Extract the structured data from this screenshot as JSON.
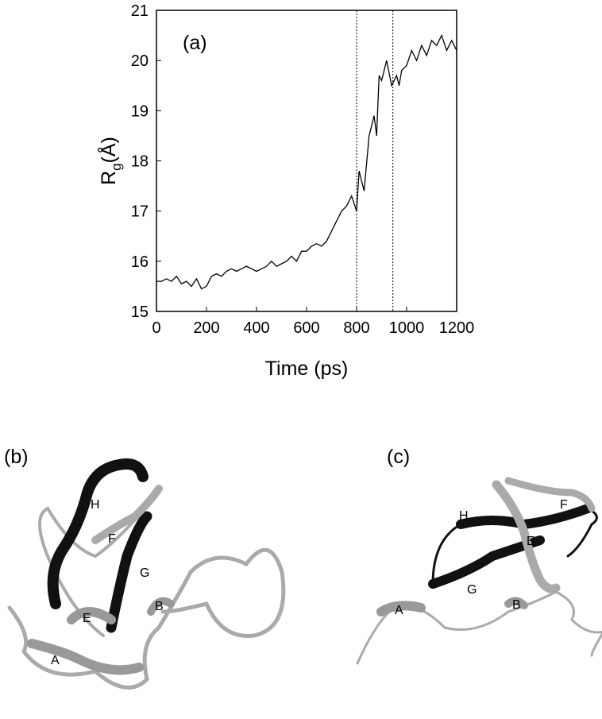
{
  "chart_data": {
    "type": "line",
    "annotation": "(a)",
    "xlabel": "Time (ps)",
    "ylabel": {
      "main": "R",
      "sub": "g",
      "unit": "(Å)"
    },
    "x": [
      0,
      20,
      40,
      60,
      80,
      100,
      120,
      140,
      160,
      180,
      200,
      220,
      240,
      260,
      280,
      300,
      320,
      340,
      360,
      380,
      400,
      420,
      440,
      460,
      480,
      500,
      520,
      540,
      560,
      580,
      600,
      620,
      640,
      660,
      680,
      700,
      720,
      740,
      760,
      780,
      800,
      810,
      830,
      850,
      870,
      880,
      890,
      900,
      920,
      940,
      960,
      970,
      980,
      1000,
      1020,
      1040,
      1060,
      1080,
      1100,
      1120,
      1140,
      1160,
      1180,
      1200
    ],
    "series": [
      {
        "color": "#000000",
        "values": [
          15.6,
          15.6,
          15.65,
          15.6,
          15.7,
          15.55,
          15.6,
          15.5,
          15.65,
          15.45,
          15.5,
          15.7,
          15.75,
          15.7,
          15.8,
          15.85,
          15.8,
          15.85,
          15.9,
          15.85,
          15.8,
          15.85,
          15.9,
          16.0,
          15.9,
          15.95,
          16.0,
          16.1,
          16.0,
          16.2,
          16.2,
          16.3,
          16.35,
          16.3,
          16.4,
          16.6,
          16.8,
          17.0,
          17.1,
          17.3,
          17.0,
          17.8,
          17.4,
          18.5,
          18.9,
          18.5,
          19.7,
          19.6,
          20.0,
          19.5,
          19.7,
          19.5,
          19.8,
          19.9,
          20.2,
          20.0,
          20.3,
          20.1,
          20.4,
          20.3,
          20.5,
          20.2,
          20.4,
          20.2
        ]
      }
    ],
    "vlines": [
      800,
      945
    ],
    "xlim": [
      0,
      1200
    ],
    "xticks": [
      0,
      200,
      400,
      600,
      800,
      1000,
      1200
    ],
    "ylim": [
      15,
      21
    ],
    "yticks": [
      15,
      16,
      17,
      18,
      19,
      20,
      21
    ],
    "grid": false
  },
  "panels": [
    {
      "label": "(b)",
      "residues": [
        "H",
        "F",
        "G",
        "E",
        "B",
        "A"
      ]
    },
    {
      "label": "(c)",
      "residues": [
        "H",
        "F",
        "E",
        "G",
        "A",
        "B"
      ]
    }
  ]
}
